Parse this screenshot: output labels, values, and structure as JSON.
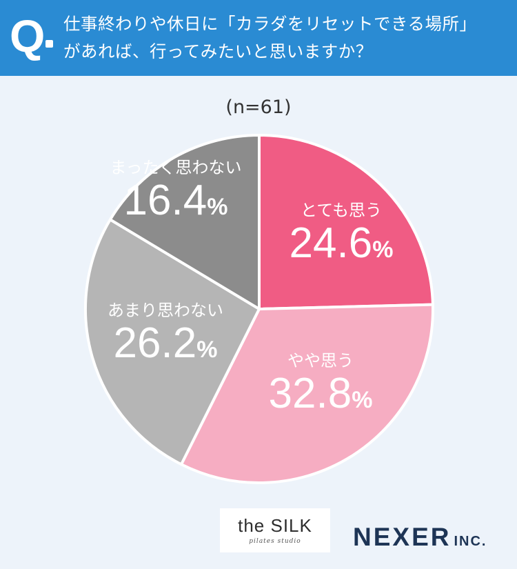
{
  "question": {
    "mark": "Q",
    "line1": "仕事終わりや休日に「カラダをリセットできる場所」",
    "line2": "があれば、行ってみたいと思いますか？"
  },
  "sample_size": "(n=61)",
  "chart_data": {
    "type": "pie",
    "title": "仕事終わりや休日に「カラダをリセットできる場所」があれば、行ってみたいと思いますか？",
    "subtitle": "(n=61)",
    "start_angle_deg": 0,
    "direction": "clockwise",
    "slices": [
      {
        "label": "とても思う",
        "value": 24.6,
        "display": "24.6",
        "color": "#f05c84"
      },
      {
        "label": "やや思う",
        "value": 32.8,
        "display": "32.8",
        "color": "#f6adc2"
      },
      {
        "label": "あまり思わない",
        "value": 26.2,
        "display": "26.2",
        "color": "#b5b5b5"
      },
      {
        "label": "まったく思わない",
        "value": 16.4,
        "display": "16.4",
        "color": "#8c8c8c"
      }
    ],
    "unit": "%"
  },
  "logos": {
    "silk_main": "the SILK",
    "silk_sub": "pilates studio",
    "nexer_main": "NEXER",
    "nexer_inc": "INC."
  }
}
